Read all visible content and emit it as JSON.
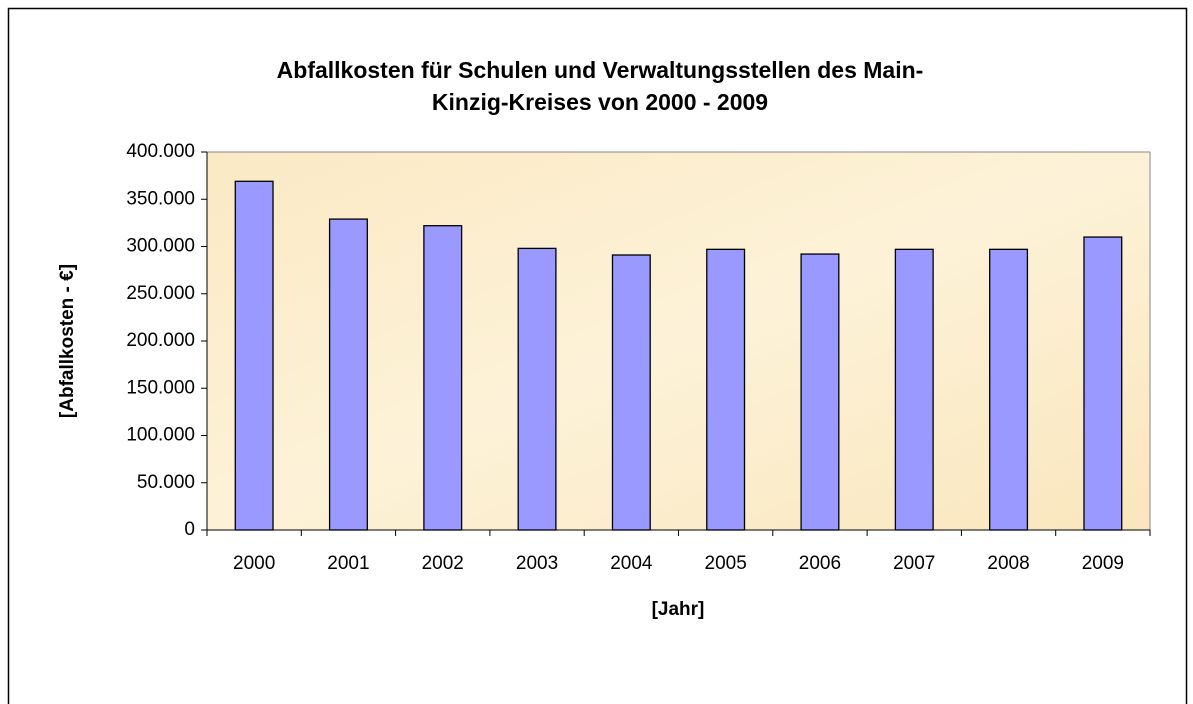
{
  "chart_data": {
    "type": "bar",
    "title": [
      "Abfallkosten für Schulen und Verwaltungsstellen des Main-",
      "Kinzig-Kreises von 2000 - 2009"
    ],
    "x_label": "[Jahr]",
    "y_label": "[Abfallkosten - €]",
    "categories": [
      "2000",
      "2001",
      "2002",
      "2003",
      "2004",
      "2005",
      "2006",
      "2007",
      "2008",
      "2009"
    ],
    "values": [
      369000,
      329000,
      322000,
      298000,
      291000,
      297000,
      292000,
      297000,
      297000,
      310000
    ],
    "color": "#9999ff",
    "ylim": [
      0,
      400000
    ],
    "yticks": [
      0,
      {
        "value": 50000,
        "label": "50.000"
      },
      {
        "value": 100000,
        "label": "100.000"
      },
      {
        "value": 150000,
        "label": "150.000"
      },
      {
        "value": 200000,
        "label": "200.000"
      },
      {
        "value": 250000,
        "label": "250.000"
      },
      {
        "value": 300000,
        "label": "300.000"
      },
      {
        "value": 350000,
        "label": "350.000"
      },
      {
        "value": 400000,
        "label": "400.000"
      }
    ],
    "grid": false
  }
}
